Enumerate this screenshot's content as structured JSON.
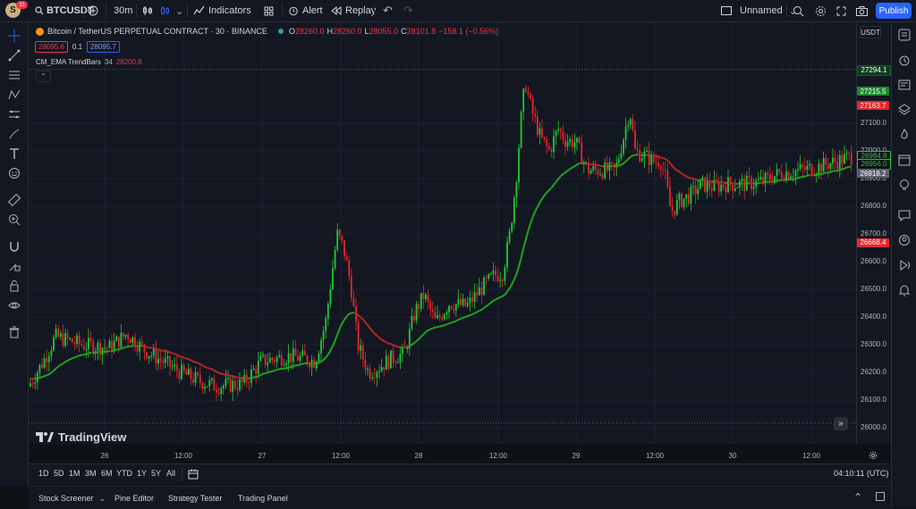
{
  "topbar": {
    "avatar_letter": "S",
    "notification_count": "11",
    "symbol": "BTCUSDT",
    "interval": "30m",
    "indicators_label": "Indicators",
    "alert_label": "Alert",
    "replay_label": "Replay",
    "layout_name": "Unnamed",
    "publish_label": "Publish"
  },
  "legend": {
    "title": "Bitcoin / TetherUS PERPETUAL CONTRACT · 30 · BINANCE",
    "o_label": "O",
    "o_value": "28260.0",
    "h_label": "H",
    "h_value": "28260.0",
    "l_label": "L",
    "l_value": "28055.0",
    "c_label": "C",
    "c_value": "28101.8",
    "change": "−158.1 (−0.56%)",
    "bid": "28095.6",
    "spread": "0.1",
    "ask": "28095.7",
    "indicator_name": "CM_EMA TrendBars",
    "indicator_param": "34",
    "indicator_value": "28200.8"
  },
  "price_scale": {
    "currency": "USDT",
    "ticks": [
      "27100.0",
      "27000.0",
      "26900.0",
      "26800.0",
      "26700.0",
      "26600.0",
      "26500.0",
      "26400.0",
      "26300.0",
      "26200.0",
      "26100.0",
      "26000.0"
    ],
    "box_high": "27294.1",
    "box_green": "27215.5",
    "box_red": "27163.7",
    "box_last": "26984.8",
    "box_ema": "26956.0",
    "box_gray": "26918.2",
    "box_low": "26668.4"
  },
  "time_scale": {
    "labels": [
      "26",
      "12:00",
      "27",
      "12:00",
      "28",
      "12:00",
      "29",
      "12:00",
      "30",
      "12:00"
    ]
  },
  "watermark": "TradingView",
  "range_bar": {
    "ranges": [
      "1D",
      "5D",
      "1M",
      "3M",
      "6M",
      "YTD",
      "1Y",
      "5Y",
      "All"
    ],
    "clock": "04:10:11 (UTC)"
  },
  "bottom_tabs": [
    "Stock Screener",
    "Pine Editor",
    "Strategy Tester",
    "Trading Panel"
  ],
  "colors": {
    "up": "#22c934",
    "down": "#e5262d",
    "ema_up": "#1fa51f",
    "ema_down": "#b8262a",
    "accent": "#2962ff",
    "background": "#131722"
  },
  "icons": {
    "left": [
      "crosshair-icon",
      "trendline-icon",
      "fib-icon",
      "pattern-icon",
      "measure-lines-icon",
      "brush-icon",
      "text-icon",
      "emoji-icon",
      "ruler-icon",
      "zoom-icon",
      "magnet-icon",
      "lock-drawings-icon",
      "lock-icon",
      "eye-icon",
      "trash-icon"
    ],
    "right": [
      "watchlist-icon",
      "alerts-clock-icon",
      "news-icon",
      "layers-icon",
      "hotlist-icon",
      "calendar-icon",
      "ideas-icon",
      "chat-icon",
      "streams-icon",
      "broadcast-icon",
      "notifications-icon"
    ]
  }
}
